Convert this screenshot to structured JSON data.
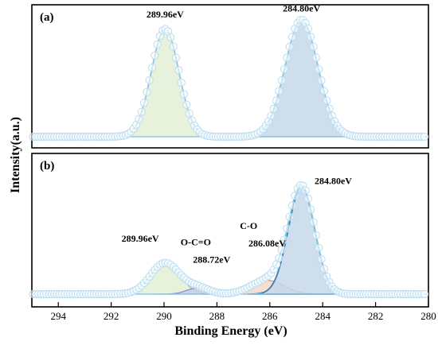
{
  "chart_data": {
    "type": "line",
    "xlabel": "Binding Energy (eV)",
    "ylabel": "Intensity(a.u.)",
    "xlim": [
      295,
      280
    ],
    "x_reversed": true,
    "x_ticks": [
      294,
      292,
      290,
      288,
      286,
      284,
      282,
      280
    ],
    "grid": false,
    "panels": [
      {
        "label": "(a)",
        "ylim": [
          0,
          1.1
        ],
        "background": {
          "left": 0.0,
          "right": 0.0
        },
        "components": [
          {
            "center": 289.96,
            "height": 0.92,
            "width": 0.52,
            "color": "#e3eed5",
            "edge": "#8bb3a6",
            "edge_width": 1.1
          },
          {
            "center": 284.8,
            "height": 1.0,
            "width": 0.62,
            "color": "#c6d8ea",
            "edge": "#6f9cc5",
            "edge_width": 1.3
          }
        ],
        "annotations": [
          {
            "text": "289.96eV",
            "x": 289.96,
            "y": 1.02
          },
          {
            "text": "284.80eV",
            "x": 284.8,
            "y": 1.07
          }
        ]
      },
      {
        "label": "(b)",
        "ylim": [
          0,
          1.1
        ],
        "background": {
          "left": 0.0,
          "right": 0.0
        },
        "components": [
          {
            "center": 289.96,
            "height": 0.25,
            "width": 0.55,
            "color": "#e3eed5",
            "edge": "#8bb3a6",
            "edge_width": 1.1
          },
          {
            "center": 288.72,
            "height": 0.05,
            "width": 0.42,
            "color": "#c9cce6",
            "edge": "#8a93c8",
            "edge_width": 1.3
          },
          {
            "center": 286.08,
            "height": 0.11,
            "width": 0.62,
            "color": "#f4d8c9",
            "edge": "#c99d86",
            "edge_width": 1.3
          },
          {
            "center": 284.8,
            "height": 0.86,
            "width": 0.5,
            "color": "#c6d8ea",
            "edge": "#3d7fb3",
            "edge_width": 1.8
          }
        ],
        "annotations": [
          {
            "text": "289.96eV",
            "x": 290.9,
            "y": 0.42
          },
          {
            "text": "O-C=O",
            "x": 288.8,
            "y": 0.39
          },
          {
            "text": "288.72eV",
            "x": 288.2,
            "y": 0.25
          },
          {
            "text": "C-O",
            "x": 286.8,
            "y": 0.52
          },
          {
            "text": "286.08eV",
            "x": 286.1,
            "y": 0.38
          },
          {
            "text": "284.80eV",
            "x": 283.6,
            "y": 0.88
          }
        ]
      }
    ]
  }
}
